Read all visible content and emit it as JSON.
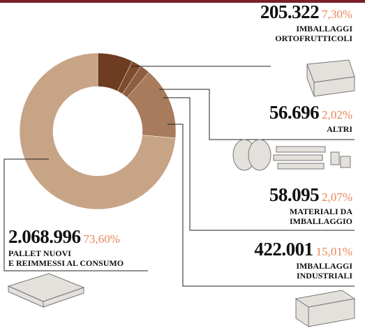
{
  "chart_data": {
    "type": "pie",
    "categories": [
      "IMBALLAGGI\nORTOFRUTTICOLI",
      "ALTRI",
      "MATERIALI DA\nIMBALLAGGIO",
      "IMBALLAGGI\nINDUSTRIALI",
      "PALLET NUOVI\nE REIMMESSI AL CONSUMO"
    ],
    "values": [
      205322,
      56696,
      58095,
      422001,
      2068996
    ],
    "value_labels": [
      "205.322",
      "56.696",
      "58.095",
      "422.001",
      "2.068.996"
    ],
    "shares": [
      7.3,
      2.02,
      2.07,
      15.01,
      73.6
    ],
    "share_labels": [
      "7,30%",
      "2,02%",
      "2,07%",
      "15,01%",
      "73,60%"
    ],
    "colors": [
      "#6e3c20",
      "#7f4b2d",
      "#8f5d3f",
      "#a77b5c",
      "#c8a487"
    ]
  }
}
